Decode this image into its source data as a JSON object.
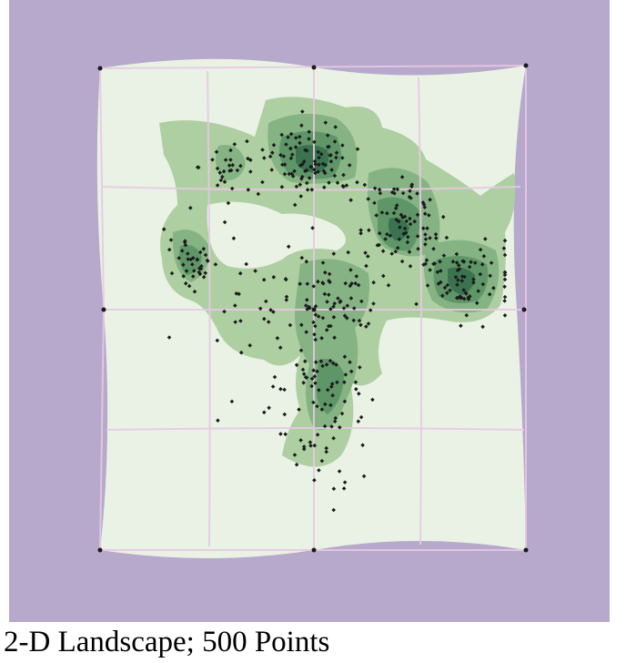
{
  "caption": "2-D Landscape; 500 Points",
  "colors": {
    "background": "#b6a9cb",
    "landscape_base": "#e9f2e5",
    "level_1": "#aecfa2",
    "level_2": "#86b384",
    "level_3": "#5f9668",
    "level_4": "#3b7350",
    "grid_line": "#e7c9e3",
    "point": "#1a1a1a"
  },
  "grid": {
    "rows": 4,
    "columns": 4
  },
  "point_count": 500
}
